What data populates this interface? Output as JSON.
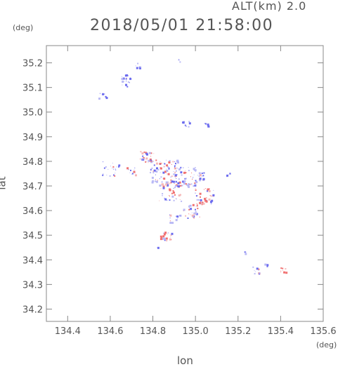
{
  "header": {
    "alt_label": "ALT(km) 2.0",
    "timestamp": "2018/05/01 21:58:00"
  },
  "axes": {
    "x_label": "lon",
    "y_label": "lat",
    "x_unit": "(deg)",
    "y_unit": "(deg)",
    "x_range": [
      134.3,
      135.6
    ],
    "y_range": [
      34.15,
      35.27
    ],
    "x_ticks": [
      "134.4",
      "134.6",
      "134.8",
      "135.0",
      "135.2",
      "135.4",
      "135.6"
    ],
    "y_ticks": [
      "34.2",
      "34.3",
      "34.4",
      "34.5",
      "34.6",
      "34.7",
      "34.8",
      "34.9",
      "35.0",
      "35.1",
      "35.2"
    ]
  },
  "colors": {
    "axis": "#888888",
    "positive": "#f07070",
    "negative": "#6b6bef",
    "pale_positive": "#f5b8b8",
    "pale_negative": "#b9b9f5"
  },
  "echo_clusters": [
    {
      "lon": 134.73,
      "lat": 35.19,
      "spread": 0.012,
      "n": 6,
      "mix": 0.1
    },
    {
      "lon": 134.92,
      "lat": 35.21,
      "spread": 0.006,
      "n": 3,
      "mix": 0.0
    },
    {
      "lon": 134.67,
      "lat": 35.13,
      "spread": 0.025,
      "n": 22,
      "mix": 0.1
    },
    {
      "lon": 134.56,
      "lat": 35.07,
      "spread": 0.015,
      "n": 8,
      "mix": 0.0
    },
    {
      "lon": 134.95,
      "lat": 34.95,
      "spread": 0.015,
      "n": 8,
      "mix": 0.0
    },
    {
      "lon": 135.05,
      "lat": 34.95,
      "spread": 0.008,
      "n": 5,
      "mix": 0.0
    },
    {
      "lon": 134.6,
      "lat": 34.77,
      "spread": 0.03,
      "n": 22,
      "mix": 0.15
    },
    {
      "lon": 134.7,
      "lat": 34.76,
      "spread": 0.02,
      "n": 12,
      "mix": 0.2
    },
    {
      "lon": 134.77,
      "lat": 34.82,
      "spread": 0.025,
      "n": 30,
      "mix": 0.5
    },
    {
      "lon": 134.85,
      "lat": 34.76,
      "spread": 0.05,
      "n": 90,
      "mix": 0.45
    },
    {
      "lon": 134.95,
      "lat": 34.74,
      "spread": 0.04,
      "n": 60,
      "mix": 0.4
    },
    {
      "lon": 135.02,
      "lat": 34.74,
      "spread": 0.02,
      "n": 16,
      "mix": 0.3
    },
    {
      "lon": 135.15,
      "lat": 34.75,
      "spread": 0.008,
      "n": 5,
      "mix": 0.0
    },
    {
      "lon": 134.88,
      "lat": 34.68,
      "spread": 0.04,
      "n": 45,
      "mix": 0.5
    },
    {
      "lon": 135.04,
      "lat": 34.66,
      "spread": 0.035,
      "n": 40,
      "mix": 0.6
    },
    {
      "lon": 134.98,
      "lat": 34.6,
      "spread": 0.03,
      "n": 30,
      "mix": 0.4
    },
    {
      "lon": 134.9,
      "lat": 34.57,
      "spread": 0.02,
      "n": 12,
      "mix": 0.4
    },
    {
      "lon": 134.86,
      "lat": 34.5,
      "spread": 0.02,
      "n": 20,
      "mix": 0.7
    },
    {
      "lon": 134.82,
      "lat": 34.45,
      "spread": 0.004,
      "n": 2,
      "mix": 0.0
    },
    {
      "lon": 135.23,
      "lat": 34.43,
      "spread": 0.005,
      "n": 3,
      "mix": 0.0
    },
    {
      "lon": 135.28,
      "lat": 34.36,
      "spread": 0.015,
      "n": 10,
      "mix": 0.2
    },
    {
      "lon": 135.33,
      "lat": 34.38,
      "spread": 0.005,
      "n": 3,
      "mix": 0.0
    },
    {
      "lon": 135.41,
      "lat": 34.36,
      "spread": 0.01,
      "n": 8,
      "mix": 1.0
    }
  ]
}
